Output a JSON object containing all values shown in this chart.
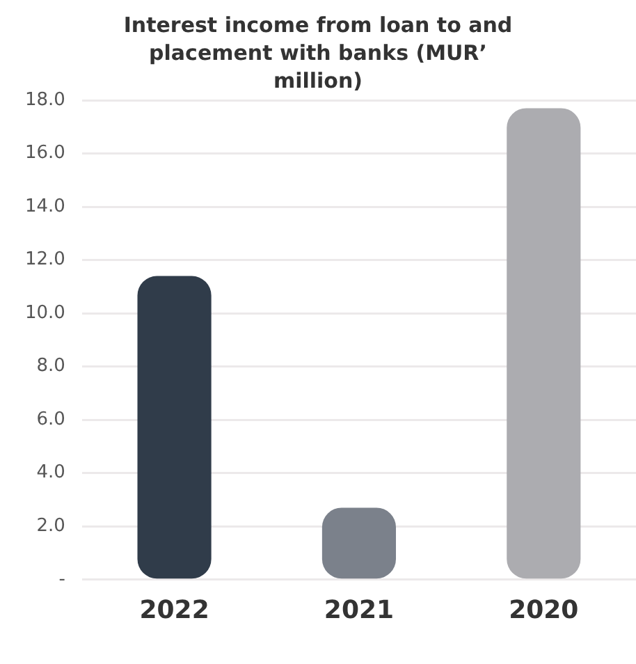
{
  "chart_data": {
    "type": "bar",
    "title": "Interest income from loan to and placement with banks (MUR’ million)",
    "categories": [
      "2022",
      "2021",
      "2020"
    ],
    "values": [
      11.4,
      2.7,
      17.7
    ],
    "colors": [
      "#303c4a",
      "#7b818b",
      "#acacb0"
    ],
    "ylim": [
      0,
      18
    ],
    "yticks": [
      {
        "value": 0,
        "label": "-"
      },
      {
        "value": 2,
        "label": "2.0"
      },
      {
        "value": 4,
        "label": "4.0"
      },
      {
        "value": 6,
        "label": "6.0"
      },
      {
        "value": 8,
        "label": "8.0"
      },
      {
        "value": 10,
        "label": "10.0"
      },
      {
        "value": 12,
        "label": "12.0"
      },
      {
        "value": 14,
        "label": "14.0"
      },
      {
        "value": 16,
        "label": "16.0"
      },
      {
        "value": 18,
        "label": "18.0"
      }
    ],
    "grid": "y",
    "legend": false
  }
}
